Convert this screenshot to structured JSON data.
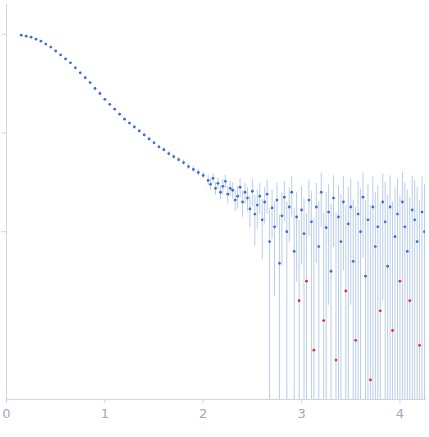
{
  "chart_data": {
    "type": "scatter",
    "log": "y",
    "tick_labels": "x",
    "marker": "dot",
    "x": [
      0.15,
      0.2,
      0.25,
      0.3,
      0.35,
      0.4,
      0.45,
      0.5,
      0.55,
      0.6,
      0.65,
      0.7,
      0.75,
      0.8,
      0.85,
      0.9,
      0.95,
      1.0,
      1.05,
      1.1,
      1.15,
      1.2,
      1.25,
      1.3,
      1.35,
      1.4,
      1.45,
      1.5,
      1.55,
      1.6,
      1.65,
      1.7,
      1.75,
      1.8,
      1.85,
      1.9,
      1.95,
      2.0,
      2.05,
      2.075,
      2.1,
      2.125,
      2.15,
      2.175,
      2.2,
      2.225,
      2.25,
      2.275,
      2.3,
      2.325,
      2.35,
      2.375,
      2.4,
      2.425,
      2.45,
      2.475,
      2.5,
      2.525,
      2.55,
      2.575,
      2.6,
      2.625,
      2.65,
      2.675,
      2.7,
      2.725,
      2.75,
      2.775,
      2.8,
      2.825,
      2.85,
      2.875,
      2.9,
      2.925,
      2.95,
      2.975,
      3.0,
      3.025,
      3.05,
      3.075,
      3.1,
      3.125,
      3.15,
      3.175,
      3.2,
      3.225,
      3.25,
      3.275,
      3.3,
      3.325,
      3.35,
      3.375,
      3.4,
      3.425,
      3.45,
      3.475,
      3.5,
      3.525,
      3.55,
      3.575,
      3.6,
      3.625,
      3.65,
      3.675,
      3.7,
      3.725,
      3.75,
      3.775,
      3.8,
      3.825,
      3.85,
      3.875,
      3.9,
      3.925,
      3.95,
      3.975,
      4.0,
      4.025,
      4.05,
      4.075,
      4.1,
      4.125,
      4.15,
      4.175,
      4.2,
      4.225,
      4.25
    ],
    "values": [
      0.977,
      0.955,
      0.933,
      0.891,
      0.851,
      0.794,
      0.741,
      0.676,
      0.617,
      0.562,
      0.513,
      0.457,
      0.407,
      0.363,
      0.324,
      0.282,
      0.251,
      0.219,
      0.195,
      0.174,
      0.155,
      0.138,
      0.126,
      0.115,
      0.105,
      0.0955,
      0.0871,
      0.0794,
      0.0724,
      0.0676,
      0.0617,
      0.0575,
      0.0537,
      0.0501,
      0.0457,
      0.0427,
      0.0398,
      0.0372,
      0.0331,
      0.0302,
      0.0347,
      0.0275,
      0.0309,
      0.0251,
      0.0288,
      0.0324,
      0.024,
      0.0275,
      0.0263,
      0.0209,
      0.0229,
      0.0282,
      0.02,
      0.0251,
      0.0219,
      0.017,
      0.0257,
      0.0151,
      0.0186,
      0.0229,
      0.0132,
      0.02,
      0.024,
      0.00794,
      0.0174,
      0.0112,
      0.0209,
      0.00479,
      0.0145,
      0.0224,
      0.01,
      0.0178,
      0.0251,
      0.00631,
      0.0141,
      0.002,
      0.0166,
      0.00955,
      0.00316,
      0.0209,
      0.0126,
      0.000631,
      0.0178,
      0.00708,
      0.0251,
      0.00126,
      0.011,
      0.0158,
      0.00398,
      0.0219,
      0.000501,
      0.0141,
      0.00794,
      0.02,
      0.00251,
      0.012,
      0.0178,
      0.00501,
      0.000794,
      0.0151,
      0.01,
      0.0224,
      0.00355,
      0.0132,
      0.000316,
      0.0178,
      0.00708,
      0.0112,
      0.00158,
      0.02,
      0.0126,
      0.00447,
      0.0178,
      0.001,
      0.00891,
      0.0151,
      0.00316,
      0.02,
      0.0112,
      0.00631,
      0.002,
      0.0166,
      0.0132,
      0.00794,
      0.000708,
      0.0158,
      0.01
    ],
    "errors": [
      0.008,
      0.008,
      0.008,
      0.008,
      0.008,
      0.008,
      0.008,
      0.008,
      0.008,
      0.008,
      0.008,
      0.008,
      0.008,
      0.008,
      0.008,
      0.008,
      0.008,
      0.004,
      0.004,
      0.004,
      0.004,
      0.004,
      0.004,
      0.004,
      0.004,
      0.004,
      0.004,
      0.003,
      0.003,
      0.003,
      0.003,
      0.003,
      0.003,
      0.003,
      0.003,
      0.003,
      0.003,
      0.003,
      0.004,
      0.004,
      0.004,
      0.004,
      0.004,
      0.004,
      0.005,
      0.005,
      0.005,
      0.005,
      0.005,
      0.005,
      0.006,
      0.006,
      0.006,
      0.006,
      0.006,
      0.006,
      0.008,
      0.008,
      0.008,
      0.008,
      0.008,
      0.008,
      0.009,
      0.009,
      0.009,
      0.009,
      0.01,
      0.01,
      0.01,
      0.01,
      0.01,
      0.01,
      0.011,
      0.011,
      0.011,
      0.011,
      0.012,
      0.012,
      0.012,
      0.012,
      0.013,
      0.013,
      0.013,
      0.013,
      0.014,
      0.014,
      0.014,
      0.014,
      0.015,
      0.015,
      0.015,
      0.015,
      0.016,
      0.016,
      0.016,
      0.016,
      0.016,
      0.016,
      0.017,
      0.017,
      0.017,
      0.017,
      0.017,
      0.017,
      0.018,
      0.018,
      0.018,
      0.018,
      0.018,
      0.018,
      0.019,
      0.019,
      0.019,
      0.019,
      0.019,
      0.019,
      0.02,
      0.02,
      0.02,
      0.02,
      0.02,
      0.02,
      0.02,
      0.02,
      0.02,
      0.02,
      0.02
    ],
    "colors": [
      "#3f6fc7",
      "#3f6fc7",
      "#3f6fc7",
      "#3f6fc7",
      "#3f6fc7",
      "#3f6fc7",
      "#3f6fc7",
      "#3f6fc7",
      "#3f6fc7",
      "#3f6fc7",
      "#3f6fc7",
      "#3f6fc7",
      "#3f6fc7",
      "#3f6fc7",
      "#3f6fc7",
      "#3f6fc7",
      "#3f6fc7",
      "#3f6fc7",
      "#3f6fc7",
      "#3f6fc7",
      "#3f6fc7",
      "#3f6fc7",
      "#3f6fc7",
      "#3f6fc7",
      "#3f6fc7",
      "#3f6fc7",
      "#3f6fc7",
      "#3f6fc7",
      "#3f6fc7",
      "#3f6fc7",
      "#3f6fc7",
      "#3f6fc7",
      "#3f6fc7",
      "#3f6fc7",
      "#3f6fc7",
      "#3f6fc7",
      "#3f6fc7",
      "#3f6fc7",
      "#3f6fc7",
      "#3f6fc7",
      "#3f6fc7",
      "#3f6fc7",
      "#3f6fc7",
      "#3f6fc7",
      "#3f6fc7",
      "#3f6fc7",
      "#3f6fc7",
      "#3f6fc7",
      "#3f6fc7",
      "#3f6fc7",
      "#3f6fc7",
      "#3f6fc7",
      "#3f6fc7",
      "#3f6fc7",
      "#3f6fc7",
      "#3f6fc7",
      "#3f6fc7",
      "#3f6fc7",
      "#3f6fc7",
      "#3f6fc7",
      "#3f6fc7",
      "#3f6fc7",
      "#3f6fc7",
      "#3f6fc7",
      "#3f6fc7",
      "#3f6fc7",
      "#3f6fc7",
      "#3f6fc7",
      "#3f6fc7",
      "#3f6fc7",
      "#3f6fc7",
      "#3f6fc7",
      "#3f6fc7",
      "#3f6fc7",
      "#3f6fc7",
      "#e0302f",
      "#3f6fc7",
      "#3f6fc7",
      "#e0302f",
      "#3f6fc7",
      "#3f6fc7",
      "#e0302f",
      "#3f6fc7",
      "#3f6fc7",
      "#3f6fc7",
      "#e0302f",
      "#3f6fc7",
      "#3f6fc7",
      "#3f6fc7",
      "#3f6fc7",
      "#e0302f",
      "#3f6fc7",
      "#3f6fc7",
      "#3f6fc7",
      "#e0302f",
      "#3f6fc7",
      "#3f6fc7",
      "#3f6fc7",
      "#e0302f",
      "#3f6fc7",
      "#3f6fc7",
      "#3f6fc7",
      "#3f6fc7",
      "#3f6fc7",
      "#e0302f",
      "#3f6fc7",
      "#3f6fc7",
      "#3f6fc7",
      "#e0302f",
      "#3f6fc7",
      "#3f6fc7",
      "#3f6fc7",
      "#3f6fc7",
      "#e0302f",
      "#3f6fc7",
      "#3f6fc7",
      "#e0302f",
      "#3f6fc7",
      "#3f6fc7",
      "#3f6fc7",
      "#e0302f",
      "#3f6fc7",
      "#3f6fc7",
      "#3f6fc7",
      "#e0302f",
      "#3f6fc7",
      "#3f6fc7"
    ],
    "xlim": [
      0,
      4.26
    ],
    "xticks": [
      0,
      1,
      2,
      3,
      4
    ],
    "ylim": [
      0.0002,
      2
    ],
    "yticks": [
      0.01,
      0.1,
      1
    ]
  }
}
